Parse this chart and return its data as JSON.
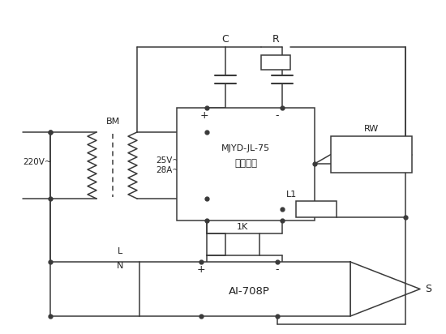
{
  "bg_color": "#ffffff",
  "line_color": "#3a3a3a",
  "lw": 1.1,
  "fig_w": 5.5,
  "fig_h": 4.12,
  "dpi": 100,
  "labels": {
    "220V": "220V~",
    "BM": "BM",
    "25V28A": "25V~\n28A~",
    "module_line1": "MJYD-JL-75",
    "module_line2": "交流模块",
    "C": "C",
    "R": "R",
    "RW": "RW",
    "L1": "L1",
    "1K": "1K",
    "AI708P": "AI-708P",
    "L": "L",
    "N": "N",
    "S": "S",
    "plus": "+",
    "minus": "-"
  }
}
